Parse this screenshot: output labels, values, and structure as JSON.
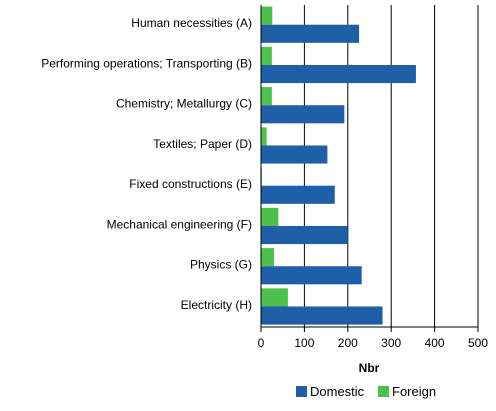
{
  "chart_data": {
    "type": "bar",
    "orientation": "horizontal",
    "categories": [
      "Human necessities (A)",
      "Performing operations; Transporting (B)",
      "Chemistry; Metallurgy  (C)",
      "Textiles; Paper (D)",
      "Fixed constructions (E)",
      "Mechanical engineering (F)",
      "Physics (G)",
      "Electricity (H)"
    ],
    "series": [
      {
        "name": "Domestic",
        "color": "#1f5fa8",
        "values": [
          226,
          357,
          192,
          153,
          170,
          200,
          232,
          280
        ]
      },
      {
        "name": "Foreign",
        "color": "#4cc24c",
        "values": [
          26,
          25,
          25,
          13,
          2,
          40,
          30,
          62
        ]
      }
    ],
    "xlabel": "Nbr",
    "xlim": [
      0,
      500
    ],
    "xticks": [
      "0",
      "100",
      "200",
      "300",
      "400",
      "500"
    ],
    "grid": "vertical",
    "legend_position": "bottom"
  }
}
